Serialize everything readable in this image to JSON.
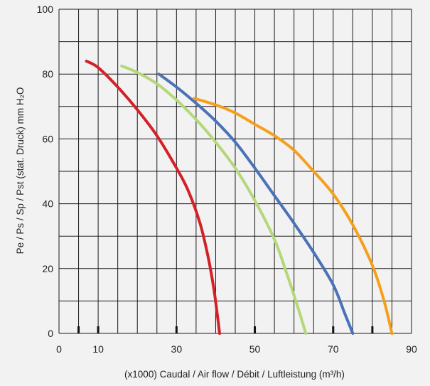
{
  "chart_data": {
    "type": "line",
    "title": "",
    "xlabel": "(x1000) Caudal / Air flow / Débit / Luftleistung (m³/h)",
    "ylabel": "Pe / Ps / Sp / Pst (stat. Druck) mm H₂O",
    "xlim": [
      0,
      90
    ],
    "ylim": [
      0,
      100
    ],
    "x_ticks": [
      0,
      10,
      30,
      50,
      70,
      90
    ],
    "y_ticks": [
      0,
      20,
      40,
      60,
      80,
      100
    ],
    "grid_x": [
      0,
      5,
      10,
      15,
      20,
      25,
      30,
      35,
      40,
      45,
      50,
      55,
      60,
      65,
      70,
      75,
      80,
      85,
      90
    ],
    "grid_y": [
      0,
      10,
      20,
      30,
      40,
      50,
      60,
      70,
      80,
      90,
      100
    ],
    "grid": true,
    "series": [
      {
        "color": "#d42027",
        "x": [
          7,
          10,
          15,
          20,
          25,
          30,
          33,
          36,
          38,
          39.5,
          40.5,
          41
        ],
        "y": [
          84,
          82,
          76,
          69,
          61,
          51,
          44,
          34,
          24,
          14,
          5,
          0
        ]
      },
      {
        "color": "#b5d77a",
        "x": [
          16,
          20,
          25,
          30,
          35,
          40,
          45,
          50,
          55,
          58,
          61,
          63
        ],
        "y": [
          82.5,
          80.5,
          77,
          72,
          66,
          59,
          51,
          41,
          29,
          19,
          8,
          0
        ]
      },
      {
        "color": "#4a72b8",
        "x": [
          25.5,
          30,
          35,
          40,
          45,
          50,
          55,
          60,
          65,
          70,
          73,
          75
        ],
        "y": [
          80,
          76,
          71,
          65.5,
          59,
          51,
          42.5,
          34,
          25,
          15,
          6,
          0
        ]
      },
      {
        "color": "#f5a01c",
        "x": [
          34.5,
          40,
          45,
          50,
          55,
          60,
          65,
          70,
          75,
          80,
          83,
          85
        ],
        "y": [
          72.5,
          70.5,
          68,
          64.5,
          61,
          56.5,
          50,
          43,
          33.5,
          21,
          10,
          0
        ]
      }
    ]
  }
}
